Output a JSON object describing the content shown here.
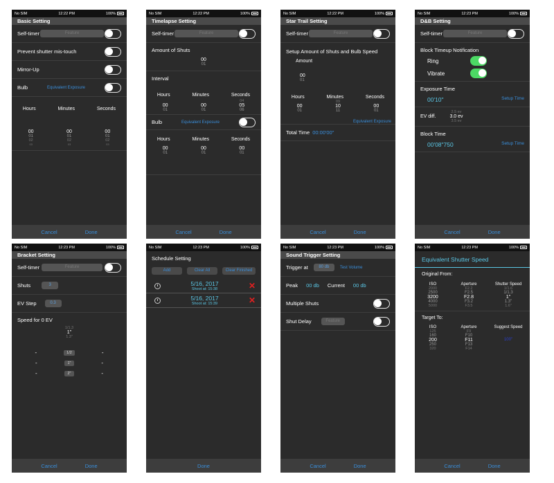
{
  "status": {
    "carrier": "No SIM",
    "battery": "100%",
    "times": [
      "12:22 PM",
      "12:22 PM",
      "12:22 PM",
      "12:23 PM",
      "12:23 PM",
      "12:23 PM",
      "12:23 PM",
      "12:23 PM"
    ]
  },
  "common": {
    "cancel": "Cancel",
    "done": "Done",
    "self_timer": "Self-timer",
    "self_timer_btn": "Feature",
    "hours": "Hours",
    "minutes": "Minutes",
    "seconds": "Seconds",
    "bulb": "Bulb",
    "equiv_exposure": "Equivalent Exposure"
  },
  "basic": {
    "title": "Basic Setting",
    "prevent": "Prevent shutter mis-touch",
    "mirror": "Mirror-Up",
    "picker": {
      "h": [
        "00",
        "01",
        "02",
        "03"
      ],
      "m": [
        "00",
        "01",
        "02",
        "03"
      ],
      "s": [
        "00",
        "01",
        "02",
        "03"
      ]
    }
  },
  "timelapse": {
    "title": "Timelapse Setting",
    "amount": "Amount of Shuts",
    "amount_vals": [
      "00",
      "01"
    ],
    "interval": "Interval",
    "int_vals": {
      "h": [
        "00",
        "01"
      ],
      "m": [
        "00",
        "01"
      ],
      "s": [
        "04",
        "05",
        "06"
      ]
    },
    "bulb_vals": {
      "h": [
        "00",
        "01"
      ],
      "m": [
        "00",
        "01"
      ],
      "s": [
        "00",
        "01"
      ]
    }
  },
  "star": {
    "title": "Star Trail Setting",
    "setup": "Setup Amount of Shuts and Bulb Speed",
    "amount": "Amount",
    "amount_vals": [
      "00",
      "01"
    ],
    "hms": {
      "h": [
        "00",
        "01"
      ],
      "m": [
        "09",
        "10",
        "11"
      ],
      "s": [
        "00",
        "01"
      ]
    },
    "total_label": "Total Time",
    "total_value": "00:00'00\""
  },
  "db": {
    "title": "D&B Setting",
    "block_notify": "Block Timeup Notification",
    "ring": "Ring",
    "vibrate": "Vibrate",
    "exposure_time": "Exposure Time",
    "exposure_value": "00'10\"",
    "setup_time": "Setup Time",
    "ev_diff": "EV diff.",
    "ev_vals": [
      "2.5 ev",
      "3.0 ev",
      "3.5 ev"
    ],
    "block_time": "Block Time",
    "block_value": "00'08\"750"
  },
  "bracket": {
    "title": "Bracket Setting",
    "shuts": "Shuts",
    "shuts_val": "3",
    "ev_step": "EV Step",
    "ev_step_val": "0.3",
    "speed": "Speed for 0 EV",
    "speed_vals": [
      "1/1.3",
      "1\"",
      "1.3\""
    ],
    "rows": [
      {
        "l": "-",
        "c": "1/2",
        "r": "-"
      },
      {
        "l": "-",
        "c": "1\"",
        "r": "-"
      },
      {
        "l": "-",
        "c": "2\"",
        "r": "-"
      }
    ]
  },
  "schedule": {
    "title": "Schedule Setting",
    "buttons": [
      "Add",
      "Clear All",
      "Clear Finished"
    ],
    "items": [
      {
        "date": "5/16, 2017",
        "shoot": "Shoot at: 15:38"
      },
      {
        "date": "5/16, 2017",
        "shoot": "Shoot at: 15:39"
      }
    ]
  },
  "sound": {
    "title": "Sound Trigger Setting",
    "trigger_at": "Trigger at",
    "trigger_val": "80 db",
    "test": "Test Volume",
    "peak": "Peak",
    "peak_val": "00 db",
    "current": "Current",
    "current_val": "00 db",
    "multiple": "Multiple Shuts",
    "delay": "Shut Delay",
    "delay_btn": "Feature"
  },
  "equiv": {
    "title": "Equivalent Shutter Speed",
    "original": "Original From:",
    "headers1": [
      "ISO",
      "Aperture",
      "Shutter Speed"
    ],
    "orig_rows": [
      [
        "2000",
        "F2.2",
        "1/1.6"
      ],
      [
        "2500",
        "F2.5",
        "1/1.3"
      ],
      [
        "3200",
        "F2.8",
        "1\""
      ],
      [
        "4000",
        "F3.2",
        "1.3\""
      ],
      [
        "5000",
        "F3.5",
        "1.6\""
      ]
    ],
    "target": "Target To:",
    "headers2": [
      "ISO",
      "Aperture",
      "Suggest Speed"
    ],
    "target_rows": [
      [
        "125",
        "F9",
        ""
      ],
      [
        "160",
        "F10",
        ""
      ],
      [
        "200",
        "F11",
        "100\""
      ],
      [
        "250",
        "F13",
        ""
      ],
      [
        "320",
        "F14",
        ""
      ]
    ]
  }
}
